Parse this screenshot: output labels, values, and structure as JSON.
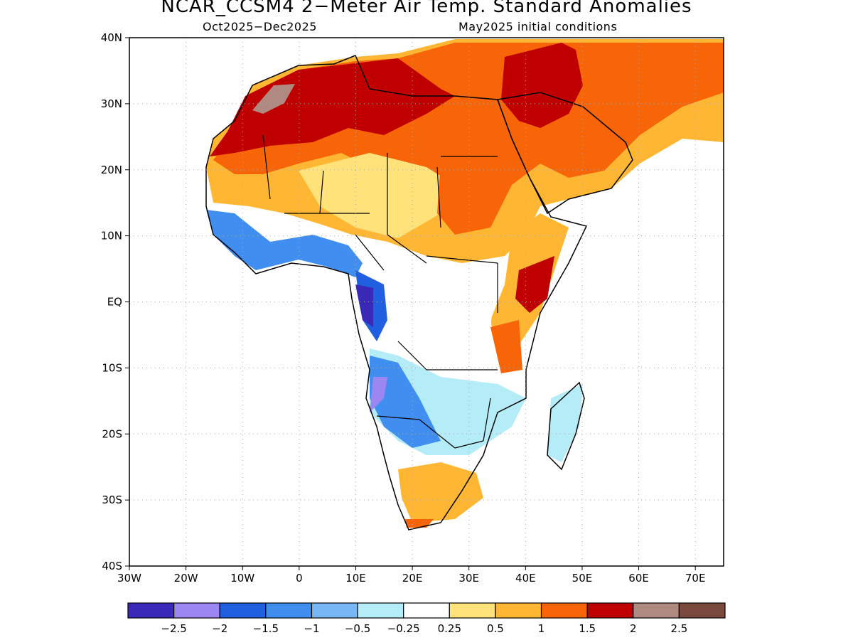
{
  "title": "NCAR_CCSM4 2−Meter Air Temp. Standard Anomalies",
  "subtitle_left": "Oct2025−Dec2025",
  "subtitle_right": "May2025 initial conditions",
  "map": {
    "lon_range": [
      -30,
      75
    ],
    "lat_range": [
      -40,
      40
    ],
    "grid": "dotted",
    "y_ticks": [
      "40N",
      "30N",
      "20N",
      "10N",
      "EQ",
      "10S",
      "20S",
      "30S",
      "40S"
    ],
    "x_ticks": [
      "30W",
      "20W",
      "10W",
      "0",
      "10E",
      "20E",
      "30E",
      "40E",
      "50E",
      "60E",
      "70E"
    ]
  },
  "colorbar": {
    "colors": [
      "#3a28b8",
      "#9b86f2",
      "#1f5fe0",
      "#3f8ef0",
      "#78b6f6",
      "#b4ecf8",
      "#ffffff",
      "#ffe27a",
      "#ffb733",
      "#f86408",
      "#c00000",
      "#b08a80",
      "#7a4a3e"
    ],
    "labels": [
      "−2.5",
      "−2",
      "−1.5",
      "−1",
      "−0.5",
      "−0.25",
      "0.25",
      "0.5",
      "1",
      "1.5",
      "2",
      "2.5"
    ]
  }
}
